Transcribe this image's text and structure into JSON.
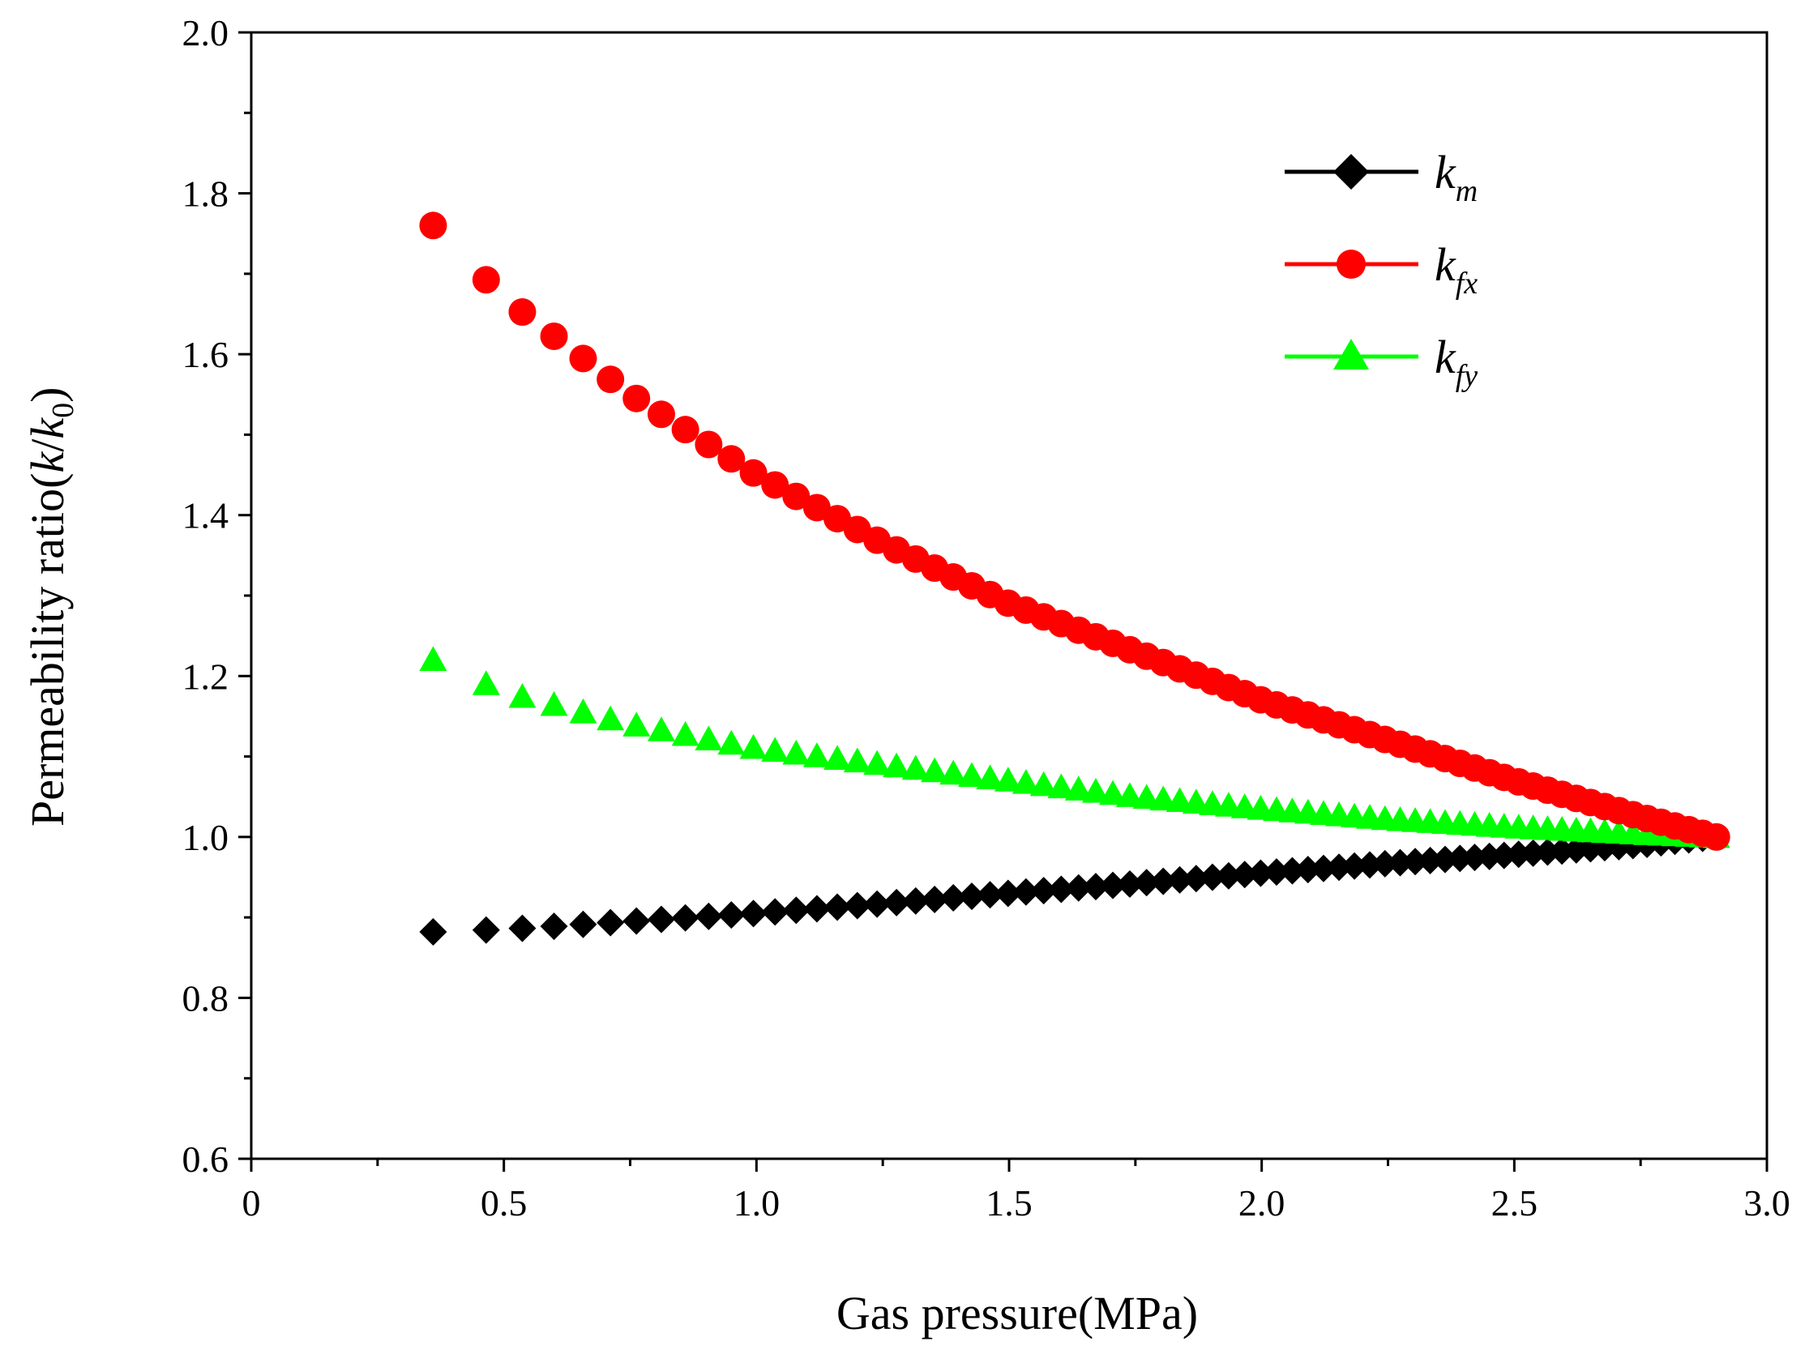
{
  "chart_data": {
    "type": "scatter",
    "xlabel": "Gas pressure(MPa)",
    "ylabel_parts": {
      "prefix": "Permeability ratio(",
      "k1": "k",
      "slash": "/",
      "k2": "k",
      "sub": "0",
      "suffix": ")"
    },
    "xlim": [
      0,
      3.0
    ],
    "ylim": [
      0.6,
      2.0
    ],
    "x_ticks": [
      {
        "value": 0,
        "label": "0"
      },
      {
        "value": 0.5,
        "label": "0.5"
      },
      {
        "value": 1.0,
        "label": "1.0"
      },
      {
        "value": 1.5,
        "label": "1.5"
      },
      {
        "value": 2.0,
        "label": "2.0"
      },
      {
        "value": 2.5,
        "label": "2.5"
      },
      {
        "value": 3.0,
        "label": "3.0"
      }
    ],
    "y_ticks": [
      {
        "value": 0.6,
        "label": "0.6"
      },
      {
        "value": 0.8,
        "label": "0.8"
      },
      {
        "value": 1.0,
        "label": "1.0"
      },
      {
        "value": 1.2,
        "label": "1.2"
      },
      {
        "value": 1.4,
        "label": "1.4"
      },
      {
        "value": 1.6,
        "label": "1.6"
      },
      {
        "value": 1.8,
        "label": "1.8"
      },
      {
        "value": 2.0,
        "label": "2.0"
      }
    ],
    "legend_position": "top-right",
    "series": [
      {
        "key": "km",
        "label_main": "k",
        "label_sub": "m",
        "color": "#000000",
        "marker": "diamond",
        "points": [
          [
            0.36,
            0.882
          ],
          [
            0.5,
            0.885
          ],
          [
            0.75,
            0.895
          ],
          [
            1.0,
            0.905
          ],
          [
            1.25,
            0.917
          ],
          [
            1.5,
            0.93
          ],
          [
            1.75,
            0.942
          ],
          [
            2.0,
            0.955
          ],
          [
            2.25,
            0.967
          ],
          [
            2.5,
            0.978
          ],
          [
            2.75,
            0.99
          ],
          [
            2.9,
            1.0
          ]
        ]
      },
      {
        "key": "kfx",
        "label_main": "k",
        "label_sub": "fx",
        "color": "#ff0000",
        "marker": "circle",
        "points": [
          [
            0.36,
            1.76
          ],
          [
            0.5,
            1.67
          ],
          [
            0.75,
            1.55
          ],
          [
            1.0,
            1.45
          ],
          [
            1.25,
            1.365
          ],
          [
            1.5,
            1.29
          ],
          [
            1.75,
            1.23
          ],
          [
            2.0,
            1.17
          ],
          [
            2.25,
            1.12
          ],
          [
            2.5,
            1.07
          ],
          [
            2.75,
            1.025
          ],
          [
            2.9,
            1.0
          ]
        ]
      },
      {
        "key": "kfy",
        "label_main": "k",
        "label_sub": "fy",
        "color": "#00ff00",
        "marker": "triangle",
        "points": [
          [
            0.36,
            1.22
          ],
          [
            0.5,
            1.18
          ],
          [
            0.75,
            1.14
          ],
          [
            1.0,
            1.11
          ],
          [
            1.25,
            1.09
          ],
          [
            1.5,
            1.07
          ],
          [
            1.75,
            1.05
          ],
          [
            2.0,
            1.035
          ],
          [
            2.25,
            1.022
          ],
          [
            2.5,
            1.012
          ],
          [
            2.75,
            1.004
          ],
          [
            2.9,
            1.0
          ]
        ]
      }
    ]
  }
}
